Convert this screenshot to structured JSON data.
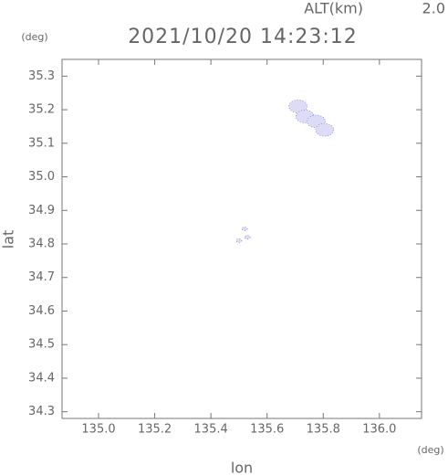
{
  "chart_data": {
    "type": "scatter",
    "altitude_label": "ALT(km)",
    "altitude_value": "2.0",
    "title": "2021/10/20 14:23:12",
    "y_unit": "(deg)",
    "x_unit": "(deg)",
    "x_label": "lon",
    "y_label": "lat",
    "series": [
      {
        "color": "#dcdcf6",
        "x": [
          135.71,
          135.735,
          135.775,
          135.805,
          135.5,
          135.53,
          135.52
        ],
        "values": [
          35.21,
          35.18,
          35.165,
          35.14,
          34.81,
          34.82,
          34.845
        ]
      }
    ],
    "xlim": [
      134.87,
      136.15
    ],
    "ylim": [
      34.28,
      35.35
    ],
    "xticks": [
      {
        "value": 135,
        "label": "135.0"
      },
      135.2,
      135.4,
      135.6,
      135.8,
      {
        "value": 136,
        "label": "136.0"
      }
    ],
    "yticks": [
      34.3,
      34.4,
      34.5,
      34.6,
      34.7,
      34.8,
      34.9,
      {
        "value": 35,
        "label": "35.0"
      },
      35.1,
      35.2,
      35.3
    ]
  }
}
